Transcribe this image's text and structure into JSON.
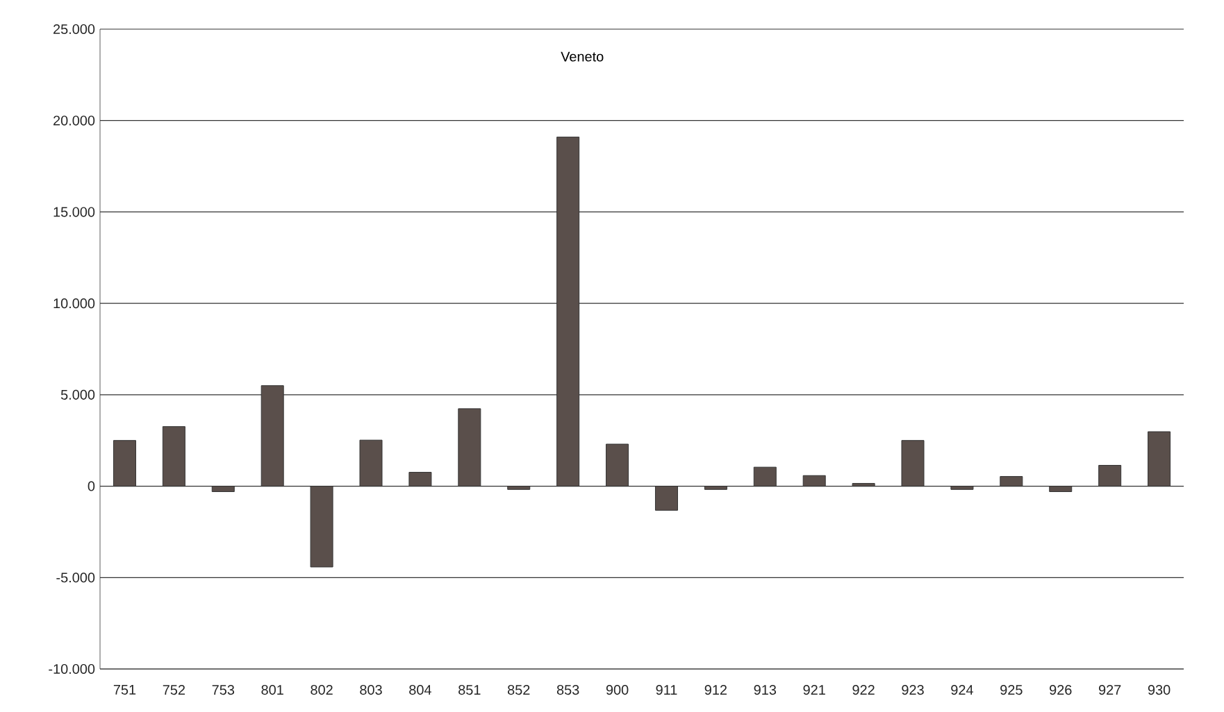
{
  "chart_data": {
    "type": "bar",
    "title": "Veneto",
    "categories": [
      "751",
      "752",
      "753",
      "801",
      "802",
      "803",
      "804",
      "851",
      "852",
      "853",
      "900",
      "911",
      "912",
      "913",
      "921",
      "922",
      "923",
      "924",
      "925",
      "926",
      "927",
      "930"
    ],
    "values": [
      2500,
      3260,
      -300,
      5500,
      -4420,
      2520,
      760,
      4240,
      -180,
      19100,
      2300,
      -1320,
      -180,
      1040,
      580,
      150,
      2500,
      -180,
      530,
      -300,
      1140,
      2980
    ],
    "color": "#5a4f4b",
    "ylim": [
      -10000,
      25000
    ],
    "yticks": [
      {
        "value": -10000,
        "label": "-10.000"
      },
      {
        "value": -5000,
        "label": "-5.000"
      },
      0,
      {
        "value": 5000,
        "label": "5.000"
      },
      {
        "value": 10000,
        "label": "10.000"
      },
      {
        "value": 15000,
        "label": "15.000"
      },
      {
        "value": 20000,
        "label": "20.000"
      },
      {
        "value": 25000,
        "label": "25.000"
      }
    ],
    "grid": "y"
  }
}
